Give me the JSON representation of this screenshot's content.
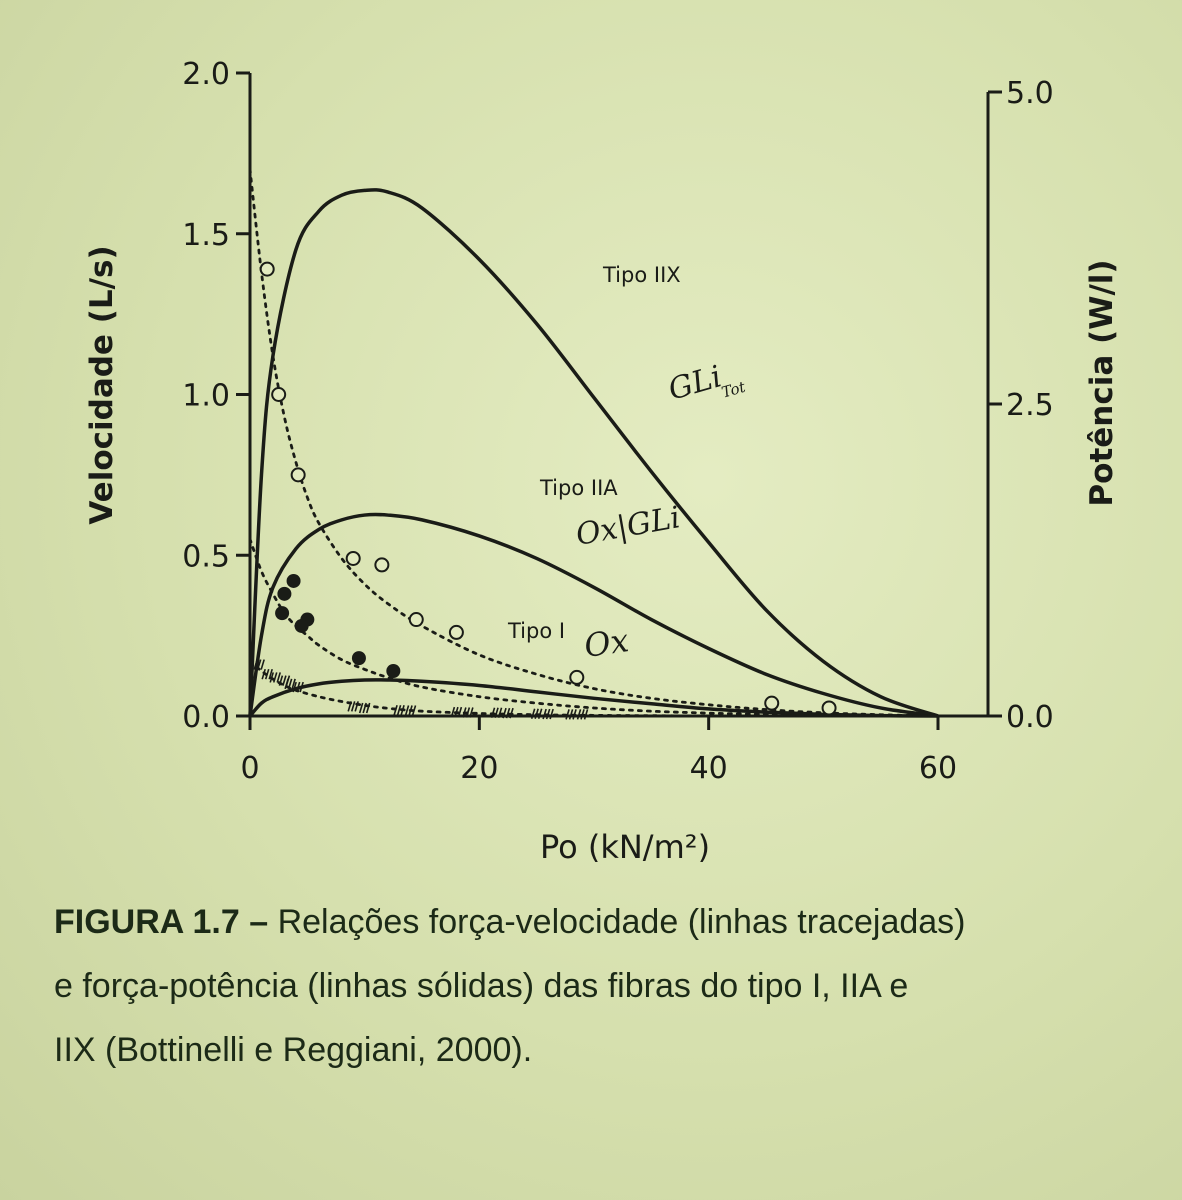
{
  "chart_data": {
    "type": "line",
    "xlabel": "Po (kN/m²)",
    "ylabel_left": "Velocidade (L/s)",
    "ylabel_right": "Potência (W/l)",
    "xlim": [
      0,
      60
    ],
    "ylim_left": [
      0,
      2.0
    ],
    "ylim_right": [
      0,
      5.0
    ],
    "x_ticks": [
      "0",
      "20",
      "40",
      "60"
    ],
    "y_left_ticks": [
      "0.0",
      "0.5",
      "1.0",
      "1.5",
      "2.0"
    ],
    "y_right_ticks": [
      "0.0",
      "2.5",
      "5.0"
    ],
    "grid": false,
    "series": [
      {
        "name": "Tipo IIX",
        "style": "solid",
        "x": [
          0,
          1,
          2,
          4,
          6,
          8,
          10,
          12,
          15,
          20,
          25,
          30,
          35,
          40,
          45,
          50,
          55,
          60
        ],
        "y": [
          0.0,
          0.75,
          1.12,
          1.45,
          1.57,
          1.62,
          1.635,
          1.63,
          1.58,
          1.42,
          1.22,
          0.99,
          0.76,
          0.54,
          0.33,
          0.17,
          0.06,
          0.0
        ]
      },
      {
        "name": "Tipo IIA",
        "style": "solid",
        "x": [
          0,
          1,
          2,
          4,
          6,
          8,
          10,
          12,
          15,
          20,
          25,
          30,
          35,
          40,
          45,
          50,
          55,
          60
        ],
        "y": [
          0.0,
          0.25,
          0.4,
          0.52,
          0.58,
          0.61,
          0.625,
          0.625,
          0.61,
          0.56,
          0.49,
          0.4,
          0.3,
          0.21,
          0.13,
          0.07,
          0.025,
          0.0
        ]
      },
      {
        "name": "Tipo I",
        "style": "solid",
        "x": [
          0,
          1,
          2,
          4,
          6,
          8,
          10,
          12,
          15,
          20,
          25,
          30,
          35,
          40,
          45,
          50,
          55,
          60
        ],
        "y": [
          0.0,
          0.04,
          0.06,
          0.085,
          0.1,
          0.108,
          0.112,
          0.112,
          0.108,
          0.095,
          0.075,
          0.055,
          0.038,
          0.022,
          0.012,
          0.005,
          0.001,
          0.0
        ]
      },
      {
        "name": "Tipo IIX",
        "style": "dotted",
        "x": [
          0,
          1,
          2,
          3,
          4,
          5,
          6,
          8,
          10,
          12,
          15,
          20,
          25,
          30,
          35,
          40,
          45,
          50,
          55,
          60
        ],
        "y": [
          1.7,
          1.38,
          1.12,
          0.93,
          0.79,
          0.68,
          0.6,
          0.49,
          0.41,
          0.35,
          0.28,
          0.19,
          0.13,
          0.085,
          0.055,
          0.035,
          0.02,
          0.01,
          0.004,
          0.0
        ],
        "points": [
          [
            1.5,
            1.39
          ],
          [
            2.5,
            1.0
          ],
          [
            4.2,
            0.75
          ],
          [
            9,
            0.49
          ],
          [
            11.5,
            0.47
          ],
          [
            14.5,
            0.3
          ],
          [
            18,
            0.26
          ],
          [
            28.5,
            0.12
          ],
          [
            45.5,
            0.04
          ],
          [
            50.5,
            0.025
          ]
        ],
        "marker": "open-circle"
      },
      {
        "name": "Tipo IIA",
        "style": "dotted",
        "x": [
          0,
          1,
          2,
          3,
          4,
          5,
          6,
          8,
          10,
          12,
          15,
          20,
          25,
          30,
          35,
          40,
          45,
          50,
          55,
          60
        ],
        "y": [
          0.55,
          0.45,
          0.38,
          0.32,
          0.28,
          0.25,
          0.22,
          0.175,
          0.145,
          0.12,
          0.09,
          0.06,
          0.04,
          0.025,
          0.015,
          0.009,
          0.005,
          0.002,
          0.001,
          0.0
        ],
        "points": [
          [
            3,
            0.38
          ],
          [
            3.8,
            0.42
          ],
          [
            2.8,
            0.32
          ],
          [
            5,
            0.3
          ],
          [
            4.5,
            0.28
          ],
          [
            9.5,
            0.18
          ],
          [
            12.5,
            0.14
          ]
        ],
        "marker": "filled-circle"
      },
      {
        "name": "Tipo I",
        "style": "dotted",
        "x": [
          0,
          1,
          2,
          3,
          4,
          6,
          8,
          10,
          12,
          15,
          20,
          25,
          30,
          35,
          40,
          50,
          60
        ],
        "y": [
          0.17,
          0.14,
          0.115,
          0.095,
          0.08,
          0.06,
          0.045,
          0.033,
          0.024,
          0.015,
          0.008,
          0.004,
          0.002,
          0.001,
          0.0,
          0.0,
          0.0
        ],
        "points": [
          [
            0.8,
            0.16
          ],
          [
            1.5,
            0.13
          ],
          [
            2.2,
            0.12
          ],
          [
            3,
            0.11
          ],
          [
            3.5,
            0.1
          ],
          [
            4.2,
            0.09
          ],
          [
            9,
            0.03
          ],
          [
            10,
            0.025
          ],
          [
            13,
            0.018
          ],
          [
            14,
            0.017
          ],
          [
            18,
            0.012
          ],
          [
            19,
            0.011
          ],
          [
            21.5,
            0.01
          ],
          [
            22.5,
            0.009
          ],
          [
            25,
            0.007
          ],
          [
            26,
            0.006
          ],
          [
            28,
            0.005
          ],
          [
            29,
            0.005
          ]
        ],
        "marker": "hash"
      }
    ],
    "annotations": [
      {
        "text": "Tipo IIX",
        "near": "Tipo IIX power peak, right side"
      },
      {
        "text": "Tipo IIA",
        "near": "Tipo IIA power curve"
      },
      {
        "text": "Tipo I",
        "near": "above Tipo I curves"
      }
    ],
    "handwritten_notes": [
      {
        "text": "GLi",
        "sub": "Tot",
        "near": "Tipo IIX"
      },
      {
        "text": "Ox|GLi",
        "near": "Tipo IIA"
      },
      {
        "text": "Ox",
        "near": "Tipo I"
      }
    ]
  },
  "caption": {
    "lead": "FIGURA 1.7 –",
    "line1": " Relações força-velocidade (linhas tracejadas)",
    "line2": "e força-potência (linhas sólidas) das fibras do tipo I, IIA e",
    "line3": "IIX (Bottinelli e Reggiani, 2000)."
  }
}
